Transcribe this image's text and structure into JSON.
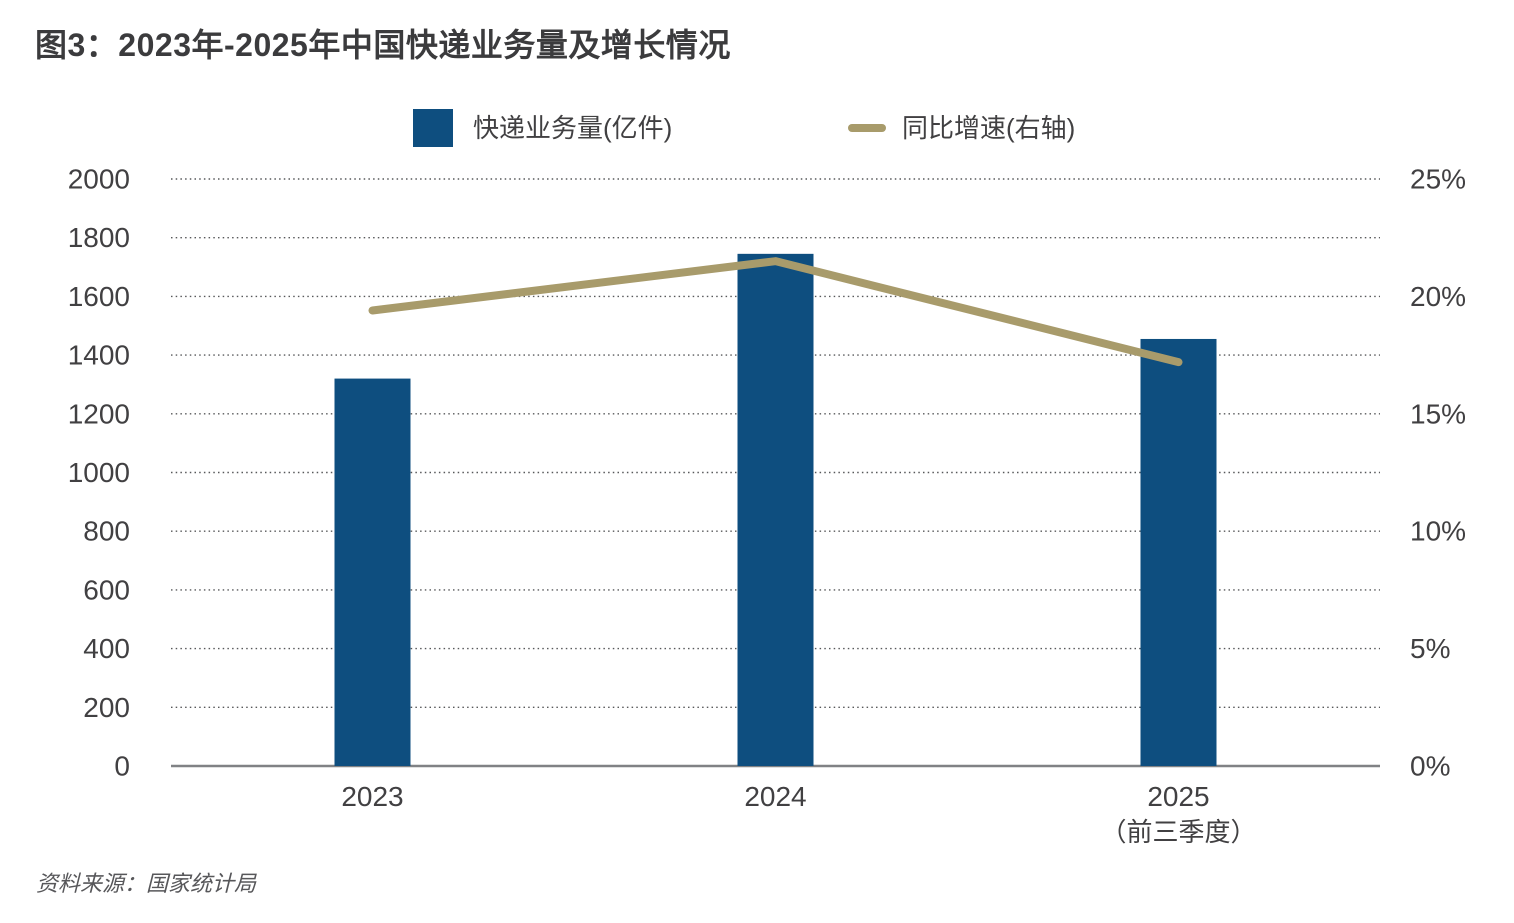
{
  "title": "图3：2023年-2025年中国快递业务量及增长情况",
  "legend": {
    "volume": {
      "label": "快递业务量(亿件)",
      "color": "#0e4e7f",
      "marker": "square-swatch"
    },
    "growth": {
      "label": "同比增速(右轴)",
      "color": "#a89b6b",
      "marker": "line-swatch"
    }
  },
  "source": "资料来源：国家统计局",
  "colors": {
    "bar": "#0e4e7f",
    "line": "#a89b6b",
    "axis_text": "#414042",
    "gridline": "#57585a",
    "baseline": "#808285",
    "title_text": "#3b3b3d"
  },
  "chart_data": {
    "type": "bar",
    "title": "图3：2023年-2025年中国快递业务量及增长情况",
    "categories": [
      "2023",
      "2024",
      "2025"
    ],
    "category_sublabels": [
      "",
      "",
      "（前三季度）"
    ],
    "series": [
      {
        "name": "快递业务量(亿件)",
        "type": "bar",
        "yaxis": "left",
        "values": [
          1320,
          1745,
          1455
        ],
        "color": "#0e4e7f"
      },
      {
        "name": "同比增速(右轴)",
        "type": "line",
        "yaxis": "right",
        "values": [
          19.4,
          21.5,
          17.2
        ],
        "color": "#a89b6b"
      }
    ],
    "left_axis": {
      "min": 0,
      "max": 2000,
      "step": 200,
      "ticks": [
        0,
        200,
        400,
        600,
        800,
        1000,
        1200,
        1400,
        1600,
        1800,
        2000
      ]
    },
    "right_axis": {
      "min": 0,
      "max": 25,
      "step": 5,
      "ticks": [
        "0%",
        "5%",
        "10%",
        "15%",
        "20%",
        "25%"
      ]
    },
    "grid": "horizontal-dotted",
    "legend_position": "top-center",
    "source": "资料来源：国家统计局"
  }
}
